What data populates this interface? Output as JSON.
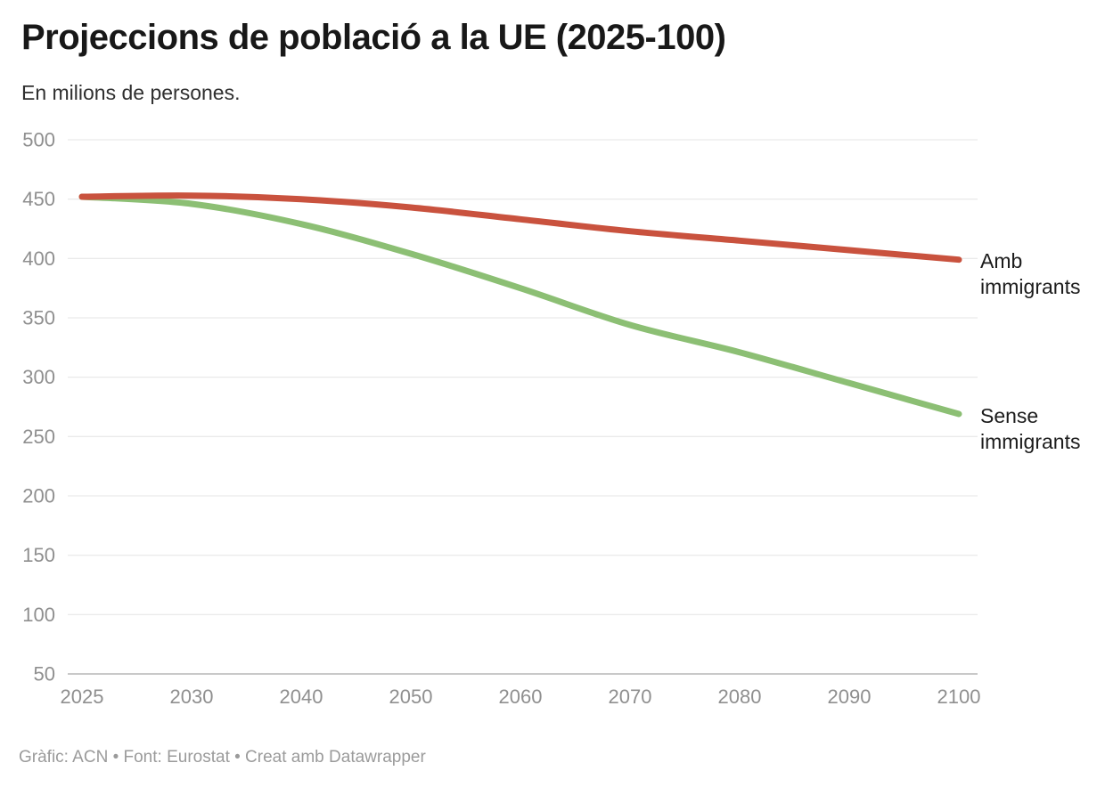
{
  "header": {
    "title": "Projeccions de població a la UE (2025-100)",
    "subtitle": "En milions de persones."
  },
  "footer": {
    "credit": "Gràfic: ACN • Font: Eurostat • Creat amb Datawrapper"
  },
  "chart_data": {
    "type": "line",
    "title": "Projeccions de població a la UE (2025-100)",
    "subtitle": "En milions de persones.",
    "xlabel": "",
    "ylabel": "",
    "x": [
      2025,
      2030,
      2040,
      2050,
      2060,
      2070,
      2080,
      2090,
      2100
    ],
    "x_tick_labels": [
      "2025",
      "2030",
      "2040",
      "2050",
      "2060",
      "2070",
      "2080",
      "2090",
      "2100"
    ],
    "x_tick_spacing": "uniform",
    "y_ticks": [
      500,
      450,
      400,
      350,
      300,
      250,
      200,
      150,
      100,
      50
    ],
    "ylim": [
      50,
      500
    ],
    "grid": "horizontal",
    "legend_position": "end-of-line-labels-right",
    "line_style": "smooth",
    "series": [
      {
        "name": "Amb immigrants",
        "color": "#c9523e",
        "values": [
          452,
          453,
          450,
          443,
          433,
          423,
          415,
          407,
          399
        ]
      },
      {
        "name": "Sense immigrants",
        "color": "#8cbf74",
        "values": [
          452,
          446,
          429,
          404,
          375,
          344,
          321,
          295,
          269
        ]
      }
    ],
    "colors": {
      "gridline": "#e4e4e4",
      "baseline": "#c9c9c9",
      "axis_label": "#8f8f8f"
    }
  }
}
